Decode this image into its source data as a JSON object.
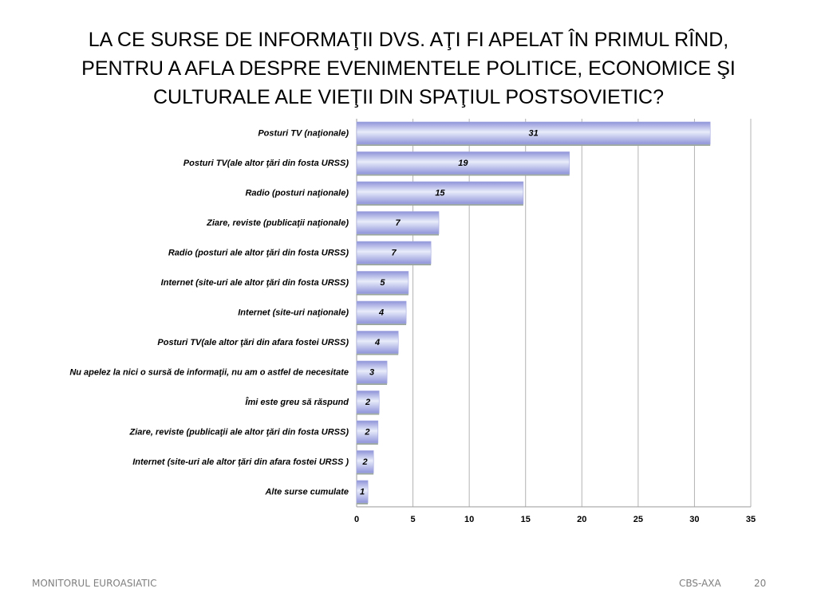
{
  "slide": {
    "title_lines": [
      "LA CE SURSE DE INFORMAŢII DVS. AŢI FI APELAT ÎN PRIMUL RÎND,",
      "PENTRU A AFLA DESPRE EVENIMENTELE POLITICE, ECONOMICE ŞI",
      "CULTURALE ALE VIEŢII DIN SPAŢIUL POSTSOVIETIC?"
    ],
    "footer_left": "MONITORUL  EUROASIATIC",
    "footer_source": "CBS-AXA",
    "page_number": "20"
  },
  "chart_data": {
    "type": "bar",
    "orientation": "horizontal",
    "categories": [
      "Posturi TV (naţionale)",
      "Posturi TV(ale altor ţări din fosta URSS)",
      "Radio (posturi naţionale)",
      "Ziare, reviste (publicaţii naţionale)",
      "Radio (posturi ale altor ţări din fosta URSS)",
      "Internet (site-uri ale altor ţări din fosta URSS)",
      "Internet (site-uri naţionale)",
      "Posturi TV(ale altor ţări din afara fostei URSS)",
      "Nu apelez la nici o sursă de informaţii, nu am o astfel de necesitate",
      "Îmi este greu să răspund",
      "Ziare, reviste (publicaţii ale altor ţări din fosta URSS)",
      "Internet (site-uri ale altor ţări din afara fostei URSS )",
      "Alte surse cumulate"
    ],
    "values": [
      31.4,
      18.9,
      14.8,
      7.3,
      6.6,
      4.6,
      4.4,
      3.7,
      2.7,
      2.0,
      1.9,
      1.5,
      1.0
    ],
    "data_labels": [
      "31",
      "19",
      "15",
      "7",
      "7",
      "5",
      "4",
      "4",
      "3",
      "2",
      "2",
      "2",
      "1"
    ],
    "xlim": [
      0,
      35
    ],
    "xticks": [
      0,
      5,
      10,
      15,
      20,
      25,
      30,
      35
    ],
    "grid": true,
    "bar_color_light": "#e8ecfa",
    "bar_color_dark": "#8f94d9",
    "bar_shadow": "#9aa79a",
    "grid_color": "#b3b3b3"
  }
}
